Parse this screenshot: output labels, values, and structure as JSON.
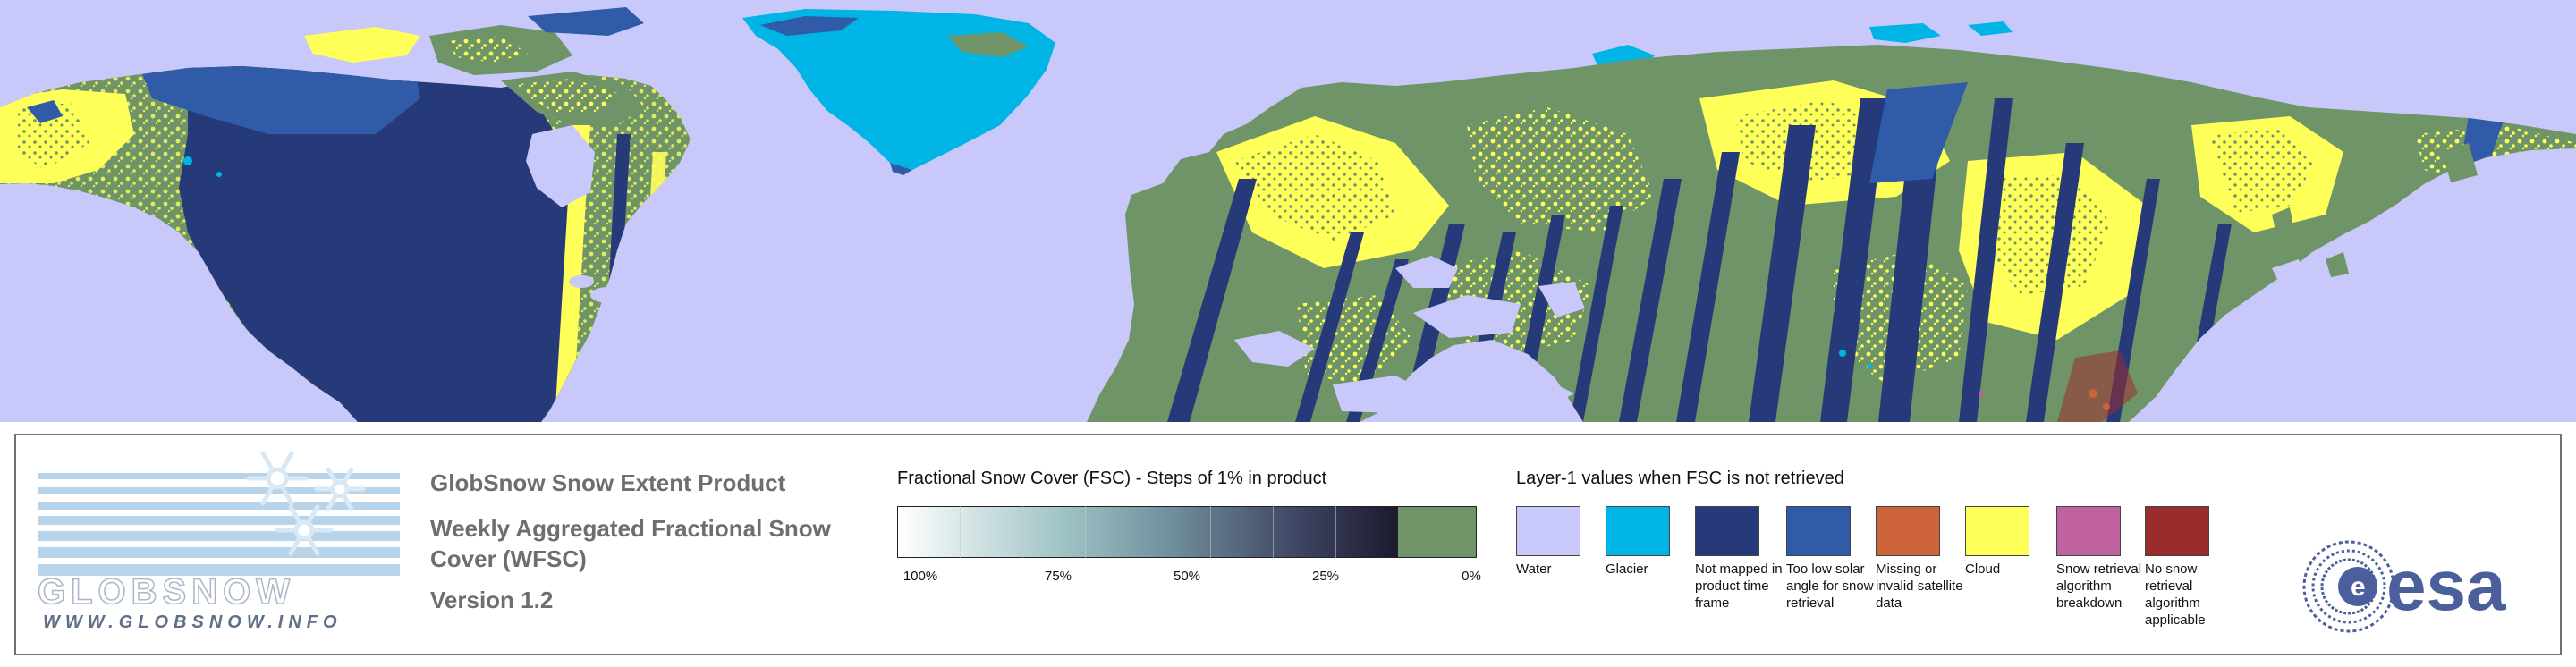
{
  "map": {
    "colors": {
      "water": "#c8c8fa",
      "glacier": "#00b4e6",
      "not_mapped": "#263a7a",
      "low_sun": "#2f5ba8",
      "missing": "#cd633a",
      "cloud": "#ffff5a",
      "snow_free": "#6f9467",
      "breakdown": "#c061a0",
      "no_retrieval": "#9a2c2e"
    }
  },
  "logo_globsnow": {
    "wordmark": "GLOBSNOW",
    "url": "WWW.GLOBSNOW.INFO",
    "colors": {
      "stripe": "#b8d4ea",
      "text": "#5e6f87"
    }
  },
  "titles": {
    "product": "GlobSnow Snow Extent Product",
    "subtitle": "Weekly Aggregated Fractional Snow Cover (WFSC)",
    "version": "Version 1.2"
  },
  "fsc_legend": {
    "heading": "Fractional Snow Cover (FSC) - Steps of 1% in product",
    "tick_labels": [
      "100%",
      "75%",
      "50%",
      "25%",
      "0%"
    ]
  },
  "layer1_legend": {
    "heading": "Layer-1 values when FSC is not retrieved",
    "items": [
      {
        "label": "Water",
        "color": "#c8c8fa"
      },
      {
        "label": "Glacier",
        "color": "#00b4e6"
      },
      {
        "label": "Not mapped in product time frame",
        "color": "#263a7a"
      },
      {
        "label": "Too low solar angle for snow retrieval",
        "color": "#2f5ba8"
      },
      {
        "label": "Missing or invalid satellite data",
        "color": "#cd633a"
      },
      {
        "label": "Cloud",
        "color": "#ffff5a"
      },
      {
        "label": "Snow retrieval algorithm breakdown",
        "color": "#c061a0"
      },
      {
        "label": "No snow retrieval algorithm applicable",
        "color": "#9a2c2e"
      }
    ]
  },
  "logo_esa": {
    "text": "esa",
    "color": "#4a5f9c"
  }
}
